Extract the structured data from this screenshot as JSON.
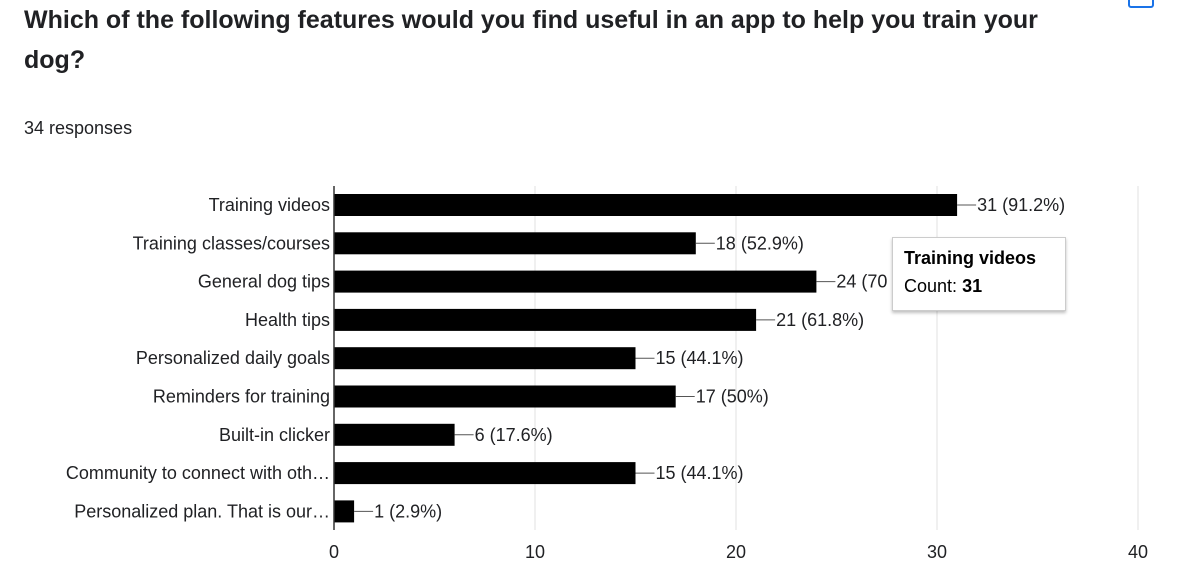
{
  "question": "Which of the following features would you find useful in an app to help you train your dog?",
  "responses_label": "34 responses",
  "icons": {
    "corner": "copy-chart-icon"
  },
  "chart_data": {
    "type": "bar",
    "orientation": "horizontal",
    "categories": [
      "Training videos",
      "Training classes/courses",
      "General dog tips",
      "Health tips",
      "Personalized daily goals",
      "Reminders for training",
      "Built-in clicker",
      "Community to connect with oth…",
      "Personalized plan. That is our…"
    ],
    "values": [
      31,
      18,
      24,
      21,
      15,
      17,
      6,
      15,
      1
    ],
    "data_labels": [
      "31 (91.2%)",
      "18 (52.9%)",
      "24 (70",
      "21 (61.8%)",
      "15 (44.1%)",
      "17 (50%)",
      "6 (17.6%)",
      "15 (44.1%)",
      "1 (2.9%)"
    ],
    "xlim": [
      0,
      40
    ],
    "xticks": [
      0,
      10,
      20,
      30,
      40
    ],
    "grid": true,
    "bar_color": "#000000"
  },
  "tooltip": {
    "title": "Training videos",
    "count_label": "Count:",
    "count_value": "31"
  }
}
